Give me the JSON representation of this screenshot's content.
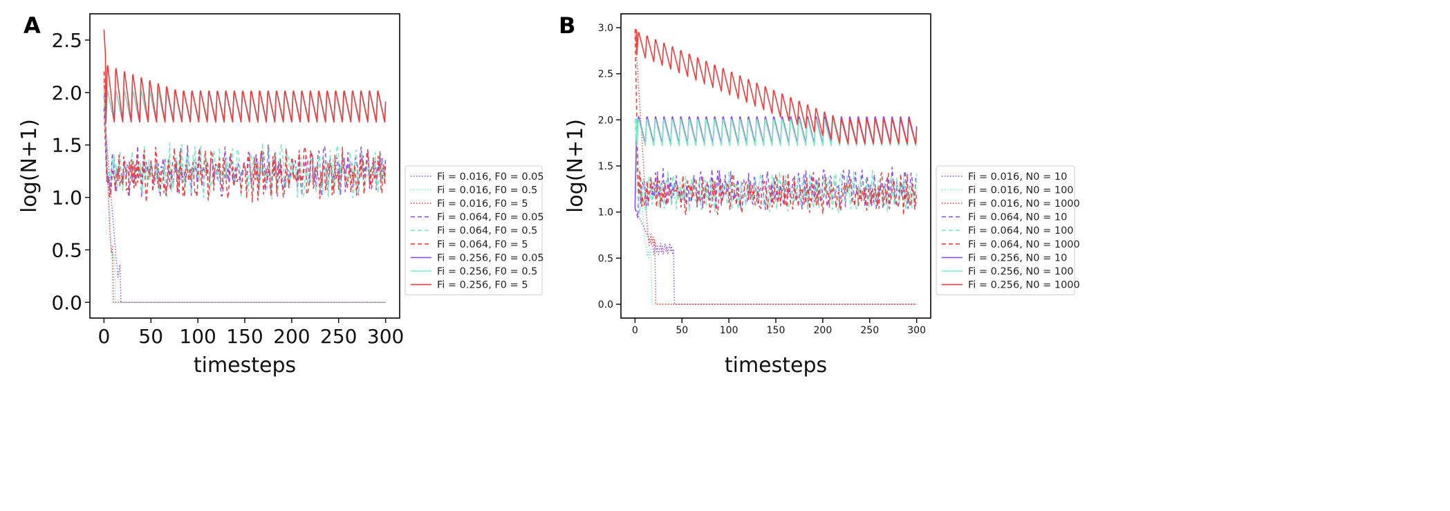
{
  "chart_data": [
    {
      "type": "line",
      "panel_label": "A",
      "xlabel": "timesteps",
      "ylabel": "log(N+1)",
      "xlim": [
        -15,
        315
      ],
      "ylim": [
        -0.15,
        2.75
      ],
      "xticks": [
        "0",
        "50",
        "100",
        "150",
        "200",
        "250",
        "300"
      ],
      "xtick_values": [
        0,
        50,
        100,
        150,
        200,
        250,
        300
      ],
      "yticks": [
        "0.0",
        "0.5",
        "1.0",
        "1.5",
        "2.0",
        "2.5"
      ],
      "ytick_values": [
        0,
        0.5,
        1.0,
        1.5,
        2.0,
        2.5
      ],
      "legend_placement": "outside right",
      "series": [
        {
          "name": "Fi = 0.016, F0 = 0.05",
          "color": "#8a4cf0",
          "style": "dotted",
          "kind": "decay",
          "start": 1.85,
          "mid": 0.3,
          "drop_t": 18,
          "step_t": 14
        },
        {
          "name": "Fi = 0.016, F0 = 0.5",
          "color": "#7ee8c4",
          "style": "dotted",
          "kind": "decay",
          "start": 1.9,
          "mid": 0.45,
          "drop_t": 12,
          "step_t": 8
        },
        {
          "name": "Fi = 0.016, F0 = 5",
          "color": "#ee3b3b",
          "style": "dotted",
          "kind": "decay",
          "start": 2.1,
          "mid": 0.5,
          "drop_t": 10,
          "step_t": 7
        },
        {
          "name": "Fi = 0.064, F0 = 0.05",
          "color": "#8a4cf0",
          "style": "dashed",
          "kind": "noisy",
          "start": 1.85,
          "level": 1.25,
          "amp": 0.16,
          "seed": 11
        },
        {
          "name": "Fi = 0.064, F0 = 0.5",
          "color": "#7ee8c4",
          "style": "dashed",
          "kind": "noisy",
          "start": 1.95,
          "level": 1.25,
          "amp": 0.17,
          "seed": 23
        },
        {
          "name": "Fi = 0.064, F0 = 5",
          "color": "#ee3b3b",
          "style": "dashed",
          "kind": "noisy",
          "start": 2.2,
          "level": 1.22,
          "amp": 0.17,
          "seed": 37
        },
        {
          "name": "Fi = 0.256, F0 = 0.05",
          "color": "#8a4cf0",
          "style": "solid",
          "kind": "saw",
          "start": 1.95,
          "top": 2.03,
          "bottom": 1.72,
          "period": 9,
          "top_end": 2.0
        },
        {
          "name": "Fi = 0.256, F0 = 0.5",
          "color": "#7ee8c4",
          "style": "solid",
          "kind": "saw",
          "start": 2.0,
          "top": 2.03,
          "bottom": 1.74,
          "period": 9,
          "top_end": 2.0
        },
        {
          "name": "Fi = 0.256, F0 = 5",
          "color": "#ee3b3b",
          "style": "solid",
          "kind": "saw",
          "start": 2.6,
          "top": 2.3,
          "bottom": 1.72,
          "period": 9,
          "top_end": 2.03,
          "decay_t": 80
        }
      ]
    },
    {
      "type": "line",
      "panel_label": "B",
      "xlabel": "timesteps",
      "ylabel": "log(N+1)",
      "xlim": [
        -15,
        315
      ],
      "ylim": [
        -0.15,
        3.15
      ],
      "xticks": [
        "0",
        "50",
        "100",
        "150",
        "200",
        "250",
        "300"
      ],
      "xtick_values": [
        0,
        50,
        100,
        150,
        200,
        250,
        300
      ],
      "yticks": [
        "0.0",
        "0.5",
        "1.0",
        "1.5",
        "2.0",
        "2.5",
        "3.0"
      ],
      "ytick_values": [
        0,
        0.5,
        1.0,
        1.5,
        2.0,
        2.5,
        3.0
      ],
      "legend_placement": "outside right",
      "series": [
        {
          "name": "Fi = 0.016, N0 = 10",
          "color": "#8a4cf0",
          "style": "dotted",
          "kind": "decay",
          "start": 1.04,
          "mid": 0.6,
          "drop_t": 42,
          "step_t": 20
        },
        {
          "name": "Fi = 0.016, N0 = 100",
          "color": "#7ee8c4",
          "style": "dotted",
          "kind": "decay",
          "start": 2.0,
          "mid": 0.55,
          "drop_t": 18,
          "step_t": 12
        },
        {
          "name": "Fi = 0.016, N0 = 1000",
          "color": "#ee3b3b",
          "style": "dotted",
          "kind": "decay",
          "start": 2.98,
          "mid": 0.7,
          "drop_t": 22,
          "step_t": 14
        },
        {
          "name": "Fi = 0.064, N0 = 10",
          "color": "#8a4cf0",
          "style": "dashed",
          "kind": "noisy",
          "start": 1.05,
          "level": 1.25,
          "amp": 0.15,
          "seed": 5
        },
        {
          "name": "Fi = 0.064, N0 = 100",
          "color": "#7ee8c4",
          "style": "dashed",
          "kind": "noisy",
          "start": 2.0,
          "level": 1.22,
          "amp": 0.15,
          "seed": 19
        },
        {
          "name": "Fi = 0.064, N0 = 1000",
          "color": "#ee3b3b",
          "style": "dashed",
          "kind": "noisy",
          "start": 2.98,
          "level": 1.2,
          "amp": 0.15,
          "seed": 41
        },
        {
          "name": "Fi = 0.256, N0 = 10",
          "color": "#8a4cf0",
          "style": "solid",
          "kind": "saw",
          "start": 1.05,
          "top": 2.05,
          "bottom": 1.74,
          "period": 9,
          "top_end": 2.0
        },
        {
          "name": "Fi = 0.256, N0 = 100",
          "color": "#7ee8c4",
          "style": "solid",
          "kind": "saw",
          "start": 2.0,
          "top": 2.02,
          "bottom": 1.72,
          "period": 9,
          "top_end": 2.0
        },
        {
          "name": "Fi = 0.256, N0 = 1000",
          "color": "#ee3b3b",
          "style": "solid",
          "kind": "saw",
          "start": 2.98,
          "top": 2.98,
          "bottom": 2.72,
          "period": 9,
          "top_end": 2.02,
          "bottom_end": 1.74,
          "decay_t": 220
        }
      ]
    }
  ]
}
